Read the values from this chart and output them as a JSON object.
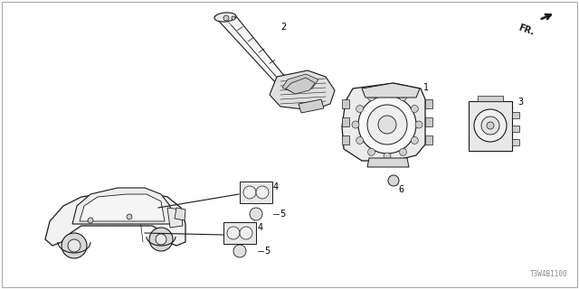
{
  "background_color": "#ffffff",
  "part_number": "T3W4B1100",
  "fr_label": "FR.",
  "line_color": "#1a1a1a",
  "text_color": "#000000",
  "figsize": [
    6.4,
    3.2
  ],
  "dpi": 100,
  "border_color": "#888888",
  "label_fontsize": 7,
  "partnum_color": "#888888"
}
